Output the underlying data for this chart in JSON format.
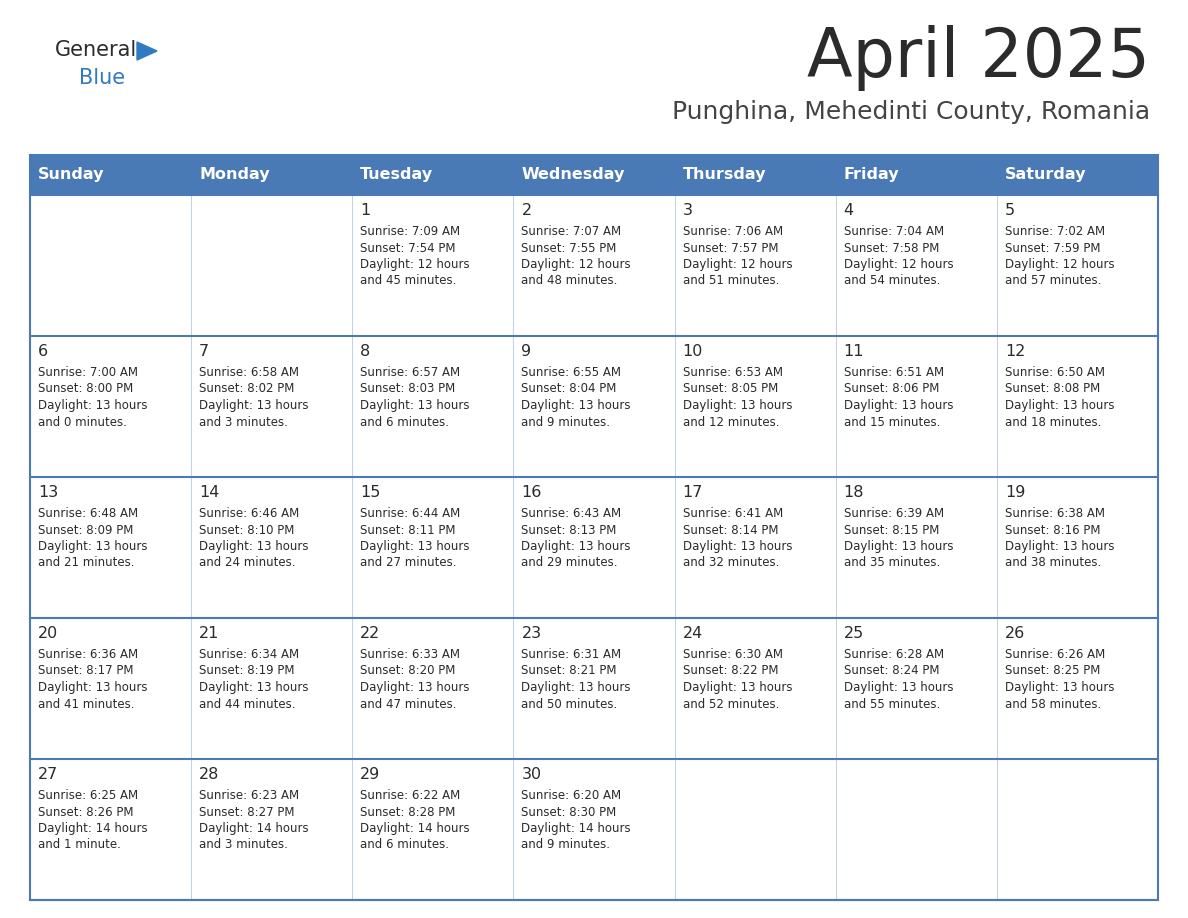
{
  "title": "April 2025",
  "subtitle": "Punghina, Mehedinti County, Romania",
  "days_of_week": [
    "Sunday",
    "Monday",
    "Tuesday",
    "Wednesday",
    "Thursday",
    "Friday",
    "Saturday"
  ],
  "header_bg": "#4a7ab5",
  "header_text_color": "#ffffff",
  "cell_bg_light": "#eef2f8",
  "cell_bg_white": "#ffffff",
  "border_color": "#4a7ab5",
  "row_line_color": "#4a7ab5",
  "title_color": "#2b2b2b",
  "subtitle_color": "#444444",
  "day_number_color": "#2b2b2b",
  "cell_text_color": "#2b2b2b",
  "logo_general_color": "#2b2b2b",
  "logo_blue_color": "#2e7bc4",
  "weeks": [
    [
      {
        "day": null,
        "sunrise": null,
        "sunset": null,
        "daylight_line1": null,
        "daylight_line2": null
      },
      {
        "day": null,
        "sunrise": null,
        "sunset": null,
        "daylight_line1": null,
        "daylight_line2": null
      },
      {
        "day": 1,
        "sunrise": "7:09 AM",
        "sunset": "7:54 PM",
        "daylight_line1": "Daylight: 12 hours",
        "daylight_line2": "and 45 minutes."
      },
      {
        "day": 2,
        "sunrise": "7:07 AM",
        "sunset": "7:55 PM",
        "daylight_line1": "Daylight: 12 hours",
        "daylight_line2": "and 48 minutes."
      },
      {
        "day": 3,
        "sunrise": "7:06 AM",
        "sunset": "7:57 PM",
        "daylight_line1": "Daylight: 12 hours",
        "daylight_line2": "and 51 minutes."
      },
      {
        "day": 4,
        "sunrise": "7:04 AM",
        "sunset": "7:58 PM",
        "daylight_line1": "Daylight: 12 hours",
        "daylight_line2": "and 54 minutes."
      },
      {
        "day": 5,
        "sunrise": "7:02 AM",
        "sunset": "7:59 PM",
        "daylight_line1": "Daylight: 12 hours",
        "daylight_line2": "and 57 minutes."
      }
    ],
    [
      {
        "day": 6,
        "sunrise": "7:00 AM",
        "sunset": "8:00 PM",
        "daylight_line1": "Daylight: 13 hours",
        "daylight_line2": "and 0 minutes."
      },
      {
        "day": 7,
        "sunrise": "6:58 AM",
        "sunset": "8:02 PM",
        "daylight_line1": "Daylight: 13 hours",
        "daylight_line2": "and 3 minutes."
      },
      {
        "day": 8,
        "sunrise": "6:57 AM",
        "sunset": "8:03 PM",
        "daylight_line1": "Daylight: 13 hours",
        "daylight_line2": "and 6 minutes."
      },
      {
        "day": 9,
        "sunrise": "6:55 AM",
        "sunset": "8:04 PM",
        "daylight_line1": "Daylight: 13 hours",
        "daylight_line2": "and 9 minutes."
      },
      {
        "day": 10,
        "sunrise": "6:53 AM",
        "sunset": "8:05 PM",
        "daylight_line1": "Daylight: 13 hours",
        "daylight_line2": "and 12 minutes."
      },
      {
        "day": 11,
        "sunrise": "6:51 AM",
        "sunset": "8:06 PM",
        "daylight_line1": "Daylight: 13 hours",
        "daylight_line2": "and 15 minutes."
      },
      {
        "day": 12,
        "sunrise": "6:50 AM",
        "sunset": "8:08 PM",
        "daylight_line1": "Daylight: 13 hours",
        "daylight_line2": "and 18 minutes."
      }
    ],
    [
      {
        "day": 13,
        "sunrise": "6:48 AM",
        "sunset": "8:09 PM",
        "daylight_line1": "Daylight: 13 hours",
        "daylight_line2": "and 21 minutes."
      },
      {
        "day": 14,
        "sunrise": "6:46 AM",
        "sunset": "8:10 PM",
        "daylight_line1": "Daylight: 13 hours",
        "daylight_line2": "and 24 minutes."
      },
      {
        "day": 15,
        "sunrise": "6:44 AM",
        "sunset": "8:11 PM",
        "daylight_line1": "Daylight: 13 hours",
        "daylight_line2": "and 27 minutes."
      },
      {
        "day": 16,
        "sunrise": "6:43 AM",
        "sunset": "8:13 PM",
        "daylight_line1": "Daylight: 13 hours",
        "daylight_line2": "and 29 minutes."
      },
      {
        "day": 17,
        "sunrise": "6:41 AM",
        "sunset": "8:14 PM",
        "daylight_line1": "Daylight: 13 hours",
        "daylight_line2": "and 32 minutes."
      },
      {
        "day": 18,
        "sunrise": "6:39 AM",
        "sunset": "8:15 PM",
        "daylight_line1": "Daylight: 13 hours",
        "daylight_line2": "and 35 minutes."
      },
      {
        "day": 19,
        "sunrise": "6:38 AM",
        "sunset": "8:16 PM",
        "daylight_line1": "Daylight: 13 hours",
        "daylight_line2": "and 38 minutes."
      }
    ],
    [
      {
        "day": 20,
        "sunrise": "6:36 AM",
        "sunset": "8:17 PM",
        "daylight_line1": "Daylight: 13 hours",
        "daylight_line2": "and 41 minutes."
      },
      {
        "day": 21,
        "sunrise": "6:34 AM",
        "sunset": "8:19 PM",
        "daylight_line1": "Daylight: 13 hours",
        "daylight_line2": "and 44 minutes."
      },
      {
        "day": 22,
        "sunrise": "6:33 AM",
        "sunset": "8:20 PM",
        "daylight_line1": "Daylight: 13 hours",
        "daylight_line2": "and 47 minutes."
      },
      {
        "day": 23,
        "sunrise": "6:31 AM",
        "sunset": "8:21 PM",
        "daylight_line1": "Daylight: 13 hours",
        "daylight_line2": "and 50 minutes."
      },
      {
        "day": 24,
        "sunrise": "6:30 AM",
        "sunset": "8:22 PM",
        "daylight_line1": "Daylight: 13 hours",
        "daylight_line2": "and 52 minutes."
      },
      {
        "day": 25,
        "sunrise": "6:28 AM",
        "sunset": "8:24 PM",
        "daylight_line1": "Daylight: 13 hours",
        "daylight_line2": "and 55 minutes."
      },
      {
        "day": 26,
        "sunrise": "6:26 AM",
        "sunset": "8:25 PM",
        "daylight_line1": "Daylight: 13 hours",
        "daylight_line2": "and 58 minutes."
      }
    ],
    [
      {
        "day": 27,
        "sunrise": "6:25 AM",
        "sunset": "8:26 PM",
        "daylight_line1": "Daylight: 14 hours",
        "daylight_line2": "and 1 minute."
      },
      {
        "day": 28,
        "sunrise": "6:23 AM",
        "sunset": "8:27 PM",
        "daylight_line1": "Daylight: 14 hours",
        "daylight_line2": "and 3 minutes."
      },
      {
        "day": 29,
        "sunrise": "6:22 AM",
        "sunset": "8:28 PM",
        "daylight_line1": "Daylight: 14 hours",
        "daylight_line2": "and 6 minutes."
      },
      {
        "day": 30,
        "sunrise": "6:20 AM",
        "sunset": "8:30 PM",
        "daylight_line1": "Daylight: 14 hours",
        "daylight_line2": "and 9 minutes."
      },
      {
        "day": null,
        "sunrise": null,
        "sunset": null,
        "daylight_line1": null,
        "daylight_line2": null
      },
      {
        "day": null,
        "sunrise": null,
        "sunset": null,
        "daylight_line1": null,
        "daylight_line2": null
      },
      {
        "day": null,
        "sunrise": null,
        "sunset": null,
        "daylight_line1": null,
        "daylight_line2": null
      }
    ]
  ]
}
